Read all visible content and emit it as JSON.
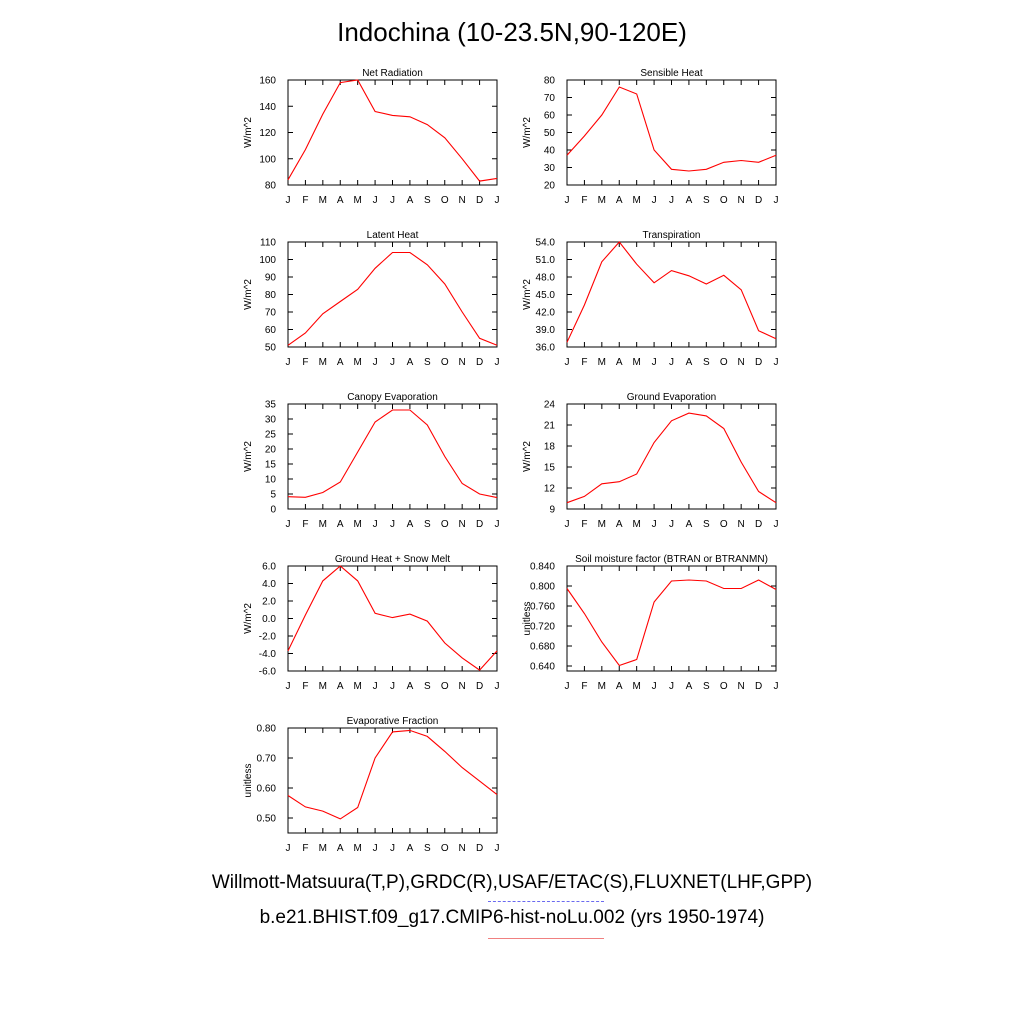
{
  "title": "Indochina (10-23.5N,90-120E)",
  "legend": {
    "observations": "Willmott-Matsuura(T,P),GRDC(R),USAF/ETAC(S),FLUXNET(LHF,GPP)",
    "model": "b.e21.BHIST.f09_g17.CMIP6-hist-noLu.002 (yrs 1950-1974)",
    "observations_color": "#6a6af0",
    "model_color": "#ff0000"
  },
  "chart_data": [
    {
      "type": "line",
      "title": "Net Radiation",
      "ylabel": "W/m^2",
      "categories": [
        "J",
        "F",
        "M",
        "A",
        "M",
        "J",
        "J",
        "A",
        "S",
        "O",
        "N",
        "D",
        "J"
      ],
      "ylim": [
        80,
        160
      ],
      "yticks": [
        "80",
        "100",
        "120",
        "140",
        "160"
      ],
      "series": [
        {
          "values": [
            84,
            107,
            134,
            158,
            160,
            136,
            133,
            132,
            126,
            116,
            100,
            83,
            85
          ]
        }
      ]
    },
    {
      "type": "line",
      "title": "Sensible Heat",
      "ylabel": "W/m^2",
      "categories": [
        "J",
        "F",
        "M",
        "A",
        "M",
        "J",
        "J",
        "A",
        "S",
        "O",
        "N",
        "D",
        "J"
      ],
      "ylim": [
        20,
        80
      ],
      "yticks": [
        "20",
        "30",
        "40",
        "50",
        "60",
        "70",
        "80"
      ],
      "series": [
        {
          "values": [
            37,
            48,
            60,
            76,
            72,
            40,
            29,
            28,
            29,
            33,
            34,
            33,
            37
          ]
        }
      ]
    },
    {
      "type": "line",
      "title": "Latent Heat",
      "ylabel": "W/m^2",
      "categories": [
        "J",
        "F",
        "M",
        "A",
        "M",
        "J",
        "J",
        "A",
        "S",
        "O",
        "N",
        "D",
        "J"
      ],
      "ylim": [
        50,
        110
      ],
      "yticks": [
        "50",
        "60",
        "70",
        "80",
        "90",
        "100",
        "110"
      ],
      "series": [
        {
          "values": [
            51,
            58,
            69,
            76,
            83,
            95,
            104,
            104,
            97,
            86,
            70,
            55,
            51
          ]
        }
      ]
    },
    {
      "type": "line",
      "title": "Transpiration",
      "ylabel": "W/m^2",
      "categories": [
        "J",
        "F",
        "M",
        "A",
        "M",
        "J",
        "J",
        "A",
        "S",
        "O",
        "N",
        "D",
        "J"
      ],
      "ylim": [
        36,
        54
      ],
      "yticks": [
        "36.0",
        "39.0",
        "42.0",
        "45.0",
        "48.0",
        "51.0",
        "54.0"
      ],
      "series": [
        {
          "values": [
            36.8,
            43.2,
            50.6,
            54.0,
            50.2,
            47.0,
            49.1,
            48.2,
            46.8,
            48.3,
            45.8,
            38.8,
            37.4
          ]
        }
      ]
    },
    {
      "type": "line",
      "title": "Canopy Evaporation",
      "ylabel": "W/m^2",
      "categories": [
        "J",
        "F",
        "M",
        "A",
        "M",
        "J",
        "J",
        "A",
        "S",
        "O",
        "N",
        "D",
        "J"
      ],
      "ylim": [
        0,
        35
      ],
      "yticks": [
        "0",
        "5",
        "10",
        "15",
        "20",
        "25",
        "30",
        "35"
      ],
      "series": [
        {
          "values": [
            4.1,
            3.9,
            5.5,
            9.0,
            19.0,
            29.0,
            33.0,
            33.0,
            28.0,
            17.5,
            8.5,
            5.0,
            3.8
          ]
        }
      ]
    },
    {
      "type": "line",
      "title": "Ground Evaporation",
      "ylabel": "W/m^2",
      "categories": [
        "J",
        "F",
        "M",
        "A",
        "M",
        "J",
        "J",
        "A",
        "S",
        "O",
        "N",
        "D",
        "J"
      ],
      "ylim": [
        9,
        24
      ],
      "yticks": [
        "9",
        "12",
        "15",
        "18",
        "21",
        "24"
      ],
      "series": [
        {
          "values": [
            9.9,
            10.8,
            12.6,
            12.9,
            14.0,
            18.5,
            21.6,
            22.7,
            22.3,
            20.5,
            15.7,
            11.5,
            9.9
          ]
        }
      ]
    },
    {
      "type": "line",
      "title": "Ground Heat + Snow Melt",
      "ylabel": "W/m^2",
      "categories": [
        "J",
        "F",
        "M",
        "A",
        "M",
        "J",
        "J",
        "A",
        "S",
        "O",
        "N",
        "D",
        "J"
      ],
      "ylim": [
        -6,
        6
      ],
      "yticks": [
        "-6.0",
        "-4.0",
        "-2.0",
        "0.0",
        "2.0",
        "4.0",
        "6.0"
      ],
      "series": [
        {
          "values": [
            -3.7,
            0.4,
            4.3,
            6.0,
            4.3,
            0.6,
            0.1,
            0.5,
            -0.3,
            -2.8,
            -4.5,
            -5.9,
            -3.7
          ]
        }
      ]
    },
    {
      "type": "line",
      "title": "Soil moisture factor (BTRAN or BTRANMN)",
      "ylabel": "unitless",
      "categories": [
        "J",
        "F",
        "M",
        "A",
        "M",
        "J",
        "J",
        "A",
        "S",
        "O",
        "N",
        "D",
        "J"
      ],
      "ylim": [
        0.63,
        0.84
      ],
      "yticks": [
        "0.640",
        "0.680",
        "0.720",
        "0.760",
        "0.800",
        "0.840"
      ],
      "series": [
        {
          "values": [
            0.795,
            0.745,
            0.688,
            0.641,
            0.653,
            0.768,
            0.81,
            0.812,
            0.81,
            0.795,
            0.795,
            0.812,
            0.793
          ]
        }
      ]
    },
    {
      "type": "line",
      "title": "Evaporative Fraction",
      "ylabel": "unitless",
      "categories": [
        "J",
        "F",
        "M",
        "A",
        "M",
        "J",
        "J",
        "A",
        "S",
        "O",
        "N",
        "D",
        "J"
      ],
      "ylim": [
        0.45,
        0.8
      ],
      "yticks": [
        "0.50",
        "0.60",
        "0.70",
        "0.80"
      ],
      "series": [
        {
          "values": [
            0.575,
            0.537,
            0.523,
            0.497,
            0.535,
            0.7,
            0.787,
            0.792,
            0.772,
            0.722,
            0.668,
            0.623,
            0.578
          ]
        }
      ]
    }
  ]
}
